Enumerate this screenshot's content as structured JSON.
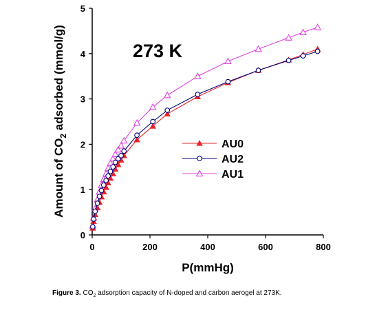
{
  "chart_data": {
    "type": "line",
    "title": "",
    "annotation": "273 K",
    "xlabel": "P(mmHg)",
    "ylabel_pre": "Amount of CO",
    "ylabel_sub": "2",
    "ylabel_post": " adsorbed (mmol/g)",
    "xlim": [
      0,
      800
    ],
    "ylim": [
      0,
      5
    ],
    "xticks": [
      "0",
      "200",
      "400",
      "600",
      "800"
    ],
    "yticks": [
      "0",
      "1",
      "2",
      "3",
      "4",
      "5"
    ],
    "grid": false,
    "legend": "center",
    "series": [
      {
        "name": "AU0",
        "color": "#e8242a",
        "marker": "filled-triangle",
        "x": [
          2,
          5,
          10,
          18,
          25,
          32,
          40,
          48,
          55,
          63,
          72,
          80,
          90,
          100,
          110,
          155,
          210,
          260,
          365,
          470,
          575,
          680,
          730,
          780
        ],
        "y": [
          0.15,
          0.3,
          0.45,
          0.6,
          0.72,
          0.84,
          0.95,
          1.05,
          1.15,
          1.25,
          1.35,
          1.45,
          1.55,
          1.65,
          1.75,
          2.1,
          2.4,
          2.67,
          3.05,
          3.36,
          3.63,
          3.86,
          3.98,
          4.1
        ]
      },
      {
        "name": "AU2",
        "color": "#00007a",
        "marker": "open-circle",
        "x": [
          2,
          5,
          10,
          18,
          25,
          32,
          40,
          48,
          55,
          63,
          72,
          80,
          90,
          100,
          110,
          155,
          210,
          260,
          365,
          470,
          575,
          680,
          730,
          780
        ],
        "y": [
          0.18,
          0.35,
          0.52,
          0.7,
          0.85,
          0.98,
          1.1,
          1.2,
          1.3,
          1.4,
          1.5,
          1.6,
          1.68,
          1.75,
          1.85,
          2.2,
          2.5,
          2.75,
          3.1,
          3.38,
          3.63,
          3.85,
          3.95,
          4.05
        ]
      },
      {
        "name": "AU1",
        "color": "#e040e0",
        "marker": "open-triangle",
        "x": [
          2,
          5,
          10,
          18,
          25,
          32,
          40,
          48,
          55,
          63,
          72,
          80,
          90,
          100,
          110,
          155,
          210,
          260,
          365,
          470,
          575,
          680,
          730,
          780
        ],
        "y": [
          0.2,
          0.38,
          0.58,
          0.78,
          0.95,
          1.1,
          1.23,
          1.35,
          1.47,
          1.58,
          1.68,
          1.78,
          1.88,
          1.97,
          2.08,
          2.47,
          2.82,
          3.08,
          3.5,
          3.83,
          4.1,
          4.35,
          4.47,
          4.58
        ]
      }
    ]
  },
  "caption": {
    "label": "Figure 3.",
    "text_pre": " CO",
    "text_sub": "2",
    "text_post": " adsorption capacity of N-doped and carbon aerogel at 273K."
  }
}
